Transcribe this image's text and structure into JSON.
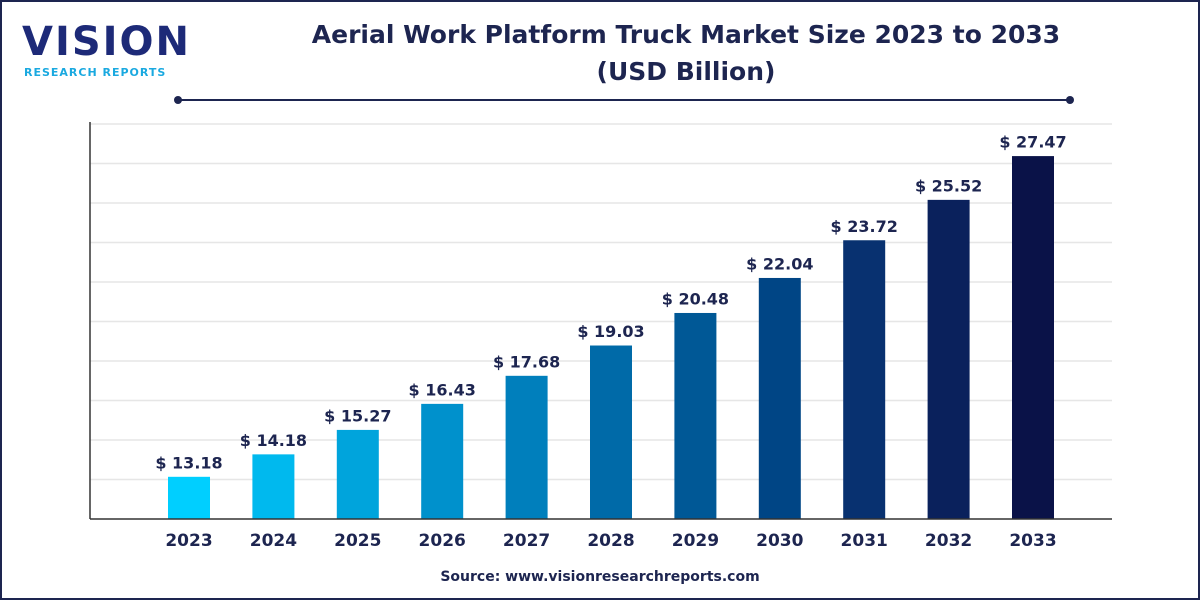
{
  "logo": {
    "name": "VISION",
    "tagline": "RESEARCH REPORTS"
  },
  "chart_data": {
    "type": "bar",
    "title": "Aerial Work Platform Truck Market Size 2023 to 2033",
    "subtitle": "(USD Billion)",
    "source": "Source: www.visionresearchreports.com",
    "categories": [
      "2023",
      "2024",
      "2025",
      "2026",
      "2027",
      "2028",
      "2029",
      "2030",
      "2031",
      "2032",
      "2033"
    ],
    "values": [
      13.18,
      14.18,
      15.27,
      16.43,
      17.68,
      19.03,
      20.48,
      22.04,
      23.72,
      25.52,
      27.47
    ],
    "value_labels": [
      "$ 13.18",
      "$ 14.18",
      "$ 15.27",
      "$ 16.43",
      "$ 17.68",
      "$ 19.03",
      "$ 20.48",
      "$ 22.04",
      "$ 23.72",
      "$ 25.52",
      "$ 27.47"
    ],
    "colors": [
      "#00cfff",
      "#00b9ee",
      "#00a4dc",
      "#0091cc",
      "#007fbc",
      "#006aa8",
      "#005896",
      "#004585",
      "#083170",
      "#0a215c",
      "#0a1248"
    ],
    "ylim": [
      11.3,
      28.9
    ],
    "grid": true
  }
}
